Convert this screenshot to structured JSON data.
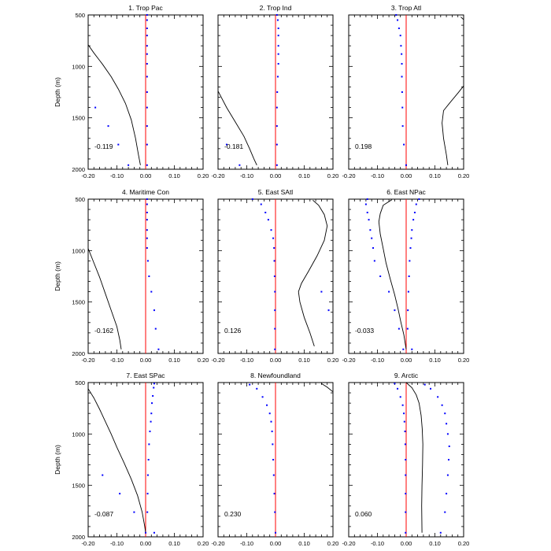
{
  "colors": {
    "axis": "#000000",
    "zero_line": "#ff0000",
    "dots": "#0000ff",
    "curve": "#000000"
  },
  "figure": {
    "ylabel": "Depth (m)",
    "xticks": [
      "-0.20",
      "-0.10",
      "0.00",
      "0.10",
      "0.20"
    ],
    "yticks": [
      "500",
      "1000",
      "1500",
      "2000"
    ]
  },
  "chart_data": [
    {
      "type": "line",
      "title": "1. Trop Pac",
      "annotation": "-0.119",
      "xlim": [
        -0.2,
        0.2
      ],
      "ylim": [
        2000,
        500
      ],
      "dots": [
        [
          0.005,
          500
        ],
        [
          0.005,
          550
        ],
        [
          0.005,
          630
        ],
        [
          0.005,
          700
        ],
        [
          0.005,
          800
        ],
        [
          0.005,
          880
        ],
        [
          0.005,
          975
        ],
        [
          0.005,
          1100
        ],
        [
          0.005,
          1250
        ],
        [
          0.005,
          1400
        ],
        [
          0.005,
          1580
        ],
        [
          0.005,
          1760
        ],
        [
          0.005,
          1960
        ]
      ],
      "points": [
        [
          -0.175,
          1400
        ],
        [
          -0.13,
          1580
        ],
        [
          -0.095,
          1760
        ],
        [
          -0.06,
          1960
        ]
      ],
      "curve": [
        [
          -0.2,
          790
        ],
        [
          -0.18,
          870
        ],
        [
          -0.15,
          980
        ],
        [
          -0.12,
          1100
        ],
        [
          -0.095,
          1220
        ],
        [
          -0.07,
          1360
        ],
        [
          -0.05,
          1520
        ],
        [
          -0.035,
          1700
        ],
        [
          -0.025,
          1860
        ],
        [
          -0.018,
          1960
        ]
      ]
    },
    {
      "type": "line",
      "title": "2. Trop Ind",
      "annotation": "-0.181",
      "xlim": [
        -0.2,
        0.2
      ],
      "ylim": [
        2000,
        500
      ],
      "dots": [
        [
          0.005,
          500
        ],
        [
          0.008,
          550
        ],
        [
          0.01,
          630
        ],
        [
          0.01,
          700
        ],
        [
          0.01,
          800
        ],
        [
          0.01,
          880
        ],
        [
          0.01,
          975
        ],
        [
          0.008,
          1100
        ],
        [
          0.006,
          1250
        ],
        [
          0.005,
          1400
        ],
        [
          0.005,
          1580
        ],
        [
          0.005,
          1760
        ],
        [
          0.005,
          1960
        ]
      ],
      "points": [
        [
          -0.17,
          1760
        ],
        [
          -0.125,
          1960
        ]
      ],
      "curve": [
        [
          -0.2,
          1240
        ],
        [
          -0.17,
          1400
        ],
        [
          -0.14,
          1540
        ],
        [
          -0.11,
          1680
        ],
        [
          -0.09,
          1800
        ],
        [
          -0.075,
          1900
        ],
        [
          -0.065,
          1960
        ]
      ]
    },
    {
      "type": "line",
      "title": "3. Trop Atl",
      "annotation": "0.198",
      "xlim": [
        -0.2,
        0.2
      ],
      "ylim": [
        2000,
        500
      ],
      "dots": [
        [
          -0.035,
          500
        ],
        [
          -0.03,
          550
        ],
        [
          -0.025,
          630
        ],
        [
          -0.02,
          700
        ],
        [
          -0.018,
          800
        ],
        [
          -0.016,
          880
        ],
        [
          -0.015,
          975
        ],
        [
          -0.015,
          1100
        ],
        [
          -0.014,
          1250
        ],
        [
          -0.013,
          1400
        ],
        [
          -0.012,
          1580
        ],
        [
          -0.008,
          1760
        ],
        [
          0.0,
          1960
        ]
      ],
      "points": [],
      "curve": [
        [
          0.19,
          520
        ],
        [
          0.2,
          545
        ]
      ],
      "curve2": [
        [
          0.2,
          1190
        ],
        [
          0.18,
          1260
        ],
        [
          0.15,
          1360
        ],
        [
          0.13,
          1430
        ],
        [
          0.125,
          1550
        ],
        [
          0.13,
          1700
        ],
        [
          0.14,
          1860
        ],
        [
          0.145,
          1960
        ]
      ]
    },
    {
      "type": "line",
      "title": "4. Maritime Con",
      "annotation": "-0.162",
      "xlim": [
        -0.2,
        0.2
      ],
      "ylim": [
        2000,
        500
      ],
      "dots": [
        [
          0.005,
          500
        ],
        [
          0.005,
          550
        ],
        [
          0.005,
          630
        ],
        [
          0.005,
          700
        ],
        [
          0.005,
          800
        ],
        [
          0.005,
          880
        ],
        [
          0.005,
          975
        ],
        [
          0.008,
          1100
        ],
        [
          0.012,
          1250
        ],
        [
          0.02,
          1400
        ],
        [
          0.03,
          1580
        ],
        [
          0.035,
          1760
        ],
        [
          0.045,
          1960
        ]
      ],
      "points": [],
      "curve": [
        [
          -0.2,
          980
        ],
        [
          -0.18,
          1120
        ],
        [
          -0.16,
          1260
        ],
        [
          -0.14,
          1420
        ],
        [
          -0.12,
          1580
        ],
        [
          -0.1,
          1740
        ],
        [
          -0.09,
          1870
        ],
        [
          -0.085,
          1960
        ]
      ]
    },
    {
      "type": "line",
      "title": "5. East SAtl",
      "annotation": "0.126",
      "xlim": [
        -0.2,
        0.2
      ],
      "ylim": [
        2000,
        500
      ],
      "dots": [
        [
          -0.08,
          500
        ],
        [
          -0.05,
          550
        ],
        [
          -0.035,
          630
        ],
        [
          -0.025,
          700
        ],
        [
          -0.015,
          800
        ],
        [
          -0.008,
          880
        ],
        [
          -0.005,
          975
        ],
        [
          -0.004,
          1100
        ],
        [
          -0.003,
          1250
        ],
        [
          -0.002,
          1400
        ],
        [
          -0.002,
          1580
        ],
        [
          -0.002,
          1760
        ],
        [
          -0.002,
          1960
        ]
      ],
      "points": [
        [
          0.16,
          1400
        ],
        [
          0.185,
          1580
        ]
      ],
      "curve": [
        [
          0.13,
          510
        ],
        [
          0.15,
          560
        ],
        [
          0.17,
          650
        ],
        [
          0.18,
          760
        ],
        [
          0.17,
          900
        ],
        [
          0.145,
          1050
        ],
        [
          0.115,
          1200
        ],
        [
          0.09,
          1320
        ],
        [
          0.08,
          1400
        ],
        [
          0.085,
          1500
        ],
        [
          0.1,
          1650
        ],
        [
          0.12,
          1800
        ],
        [
          0.135,
          1930
        ]
      ]
    },
    {
      "type": "line",
      "title": "6. East NPac",
      "annotation": "-0.033",
      "xlim": [
        -0.2,
        0.2
      ],
      "ylim": [
        2000,
        500
      ],
      "dots": [
        [
          -0.135,
          500
        ],
        [
          -0.14,
          550
        ],
        [
          -0.135,
          630
        ],
        [
          -0.13,
          700
        ],
        [
          -0.125,
          800
        ],
        [
          -0.12,
          880
        ],
        [
          -0.115,
          975
        ],
        [
          -0.11,
          1100
        ],
        [
          -0.09,
          1250
        ],
        [
          -0.06,
          1400
        ],
        [
          -0.04,
          1580
        ],
        [
          -0.025,
          1760
        ],
        [
          -0.01,
          1960
        ]
      ],
      "points": [
        [
          0.045,
          500
        ],
        [
          0.035,
          550
        ],
        [
          0.03,
          630
        ],
        [
          0.025,
          700
        ],
        [
          0.02,
          800
        ],
        [
          0.018,
          880
        ],
        [
          0.015,
          975
        ],
        [
          0.012,
          1100
        ],
        [
          0.01,
          1250
        ],
        [
          0.008,
          1400
        ],
        [
          0.006,
          1580
        ],
        [
          0.005,
          1760
        ],
        [
          0.02,
          1960
        ]
      ],
      "curve": [
        [
          -0.05,
          505
        ],
        [
          -0.08,
          560
        ],
        [
          -0.09,
          640
        ],
        [
          -0.095,
          720
        ],
        [
          -0.09,
          840
        ],
        [
          -0.08,
          980
        ],
        [
          -0.07,
          1120
        ],
        [
          -0.055,
          1280
        ],
        [
          -0.04,
          1430
        ],
        [
          -0.028,
          1570
        ],
        [
          -0.018,
          1700
        ],
        [
          -0.008,
          1820
        ],
        [
          0.0,
          1960
        ]
      ]
    },
    {
      "type": "line",
      "title": "7. East SPac",
      "annotation": "-0.087",
      "xlim": [
        -0.2,
        0.2
      ],
      "ylim": [
        2000,
        500
      ],
      "dots": [
        [
          0.03,
          510
        ],
        [
          0.028,
          550
        ],
        [
          0.025,
          630
        ],
        [
          0.022,
          700
        ],
        [
          0.02,
          800
        ],
        [
          0.018,
          880
        ],
        [
          0.015,
          975
        ],
        [
          0.012,
          1100
        ],
        [
          0.01,
          1250
        ],
        [
          0.008,
          1400
        ],
        [
          0.007,
          1580
        ],
        [
          0.006,
          1760
        ],
        [
          0.03,
          1960
        ]
      ],
      "points": [
        [
          -0.15,
          1400
        ],
        [
          -0.09,
          1580
        ],
        [
          -0.04,
          1760
        ],
        [
          0.0,
          1960
        ]
      ],
      "curve": [
        [
          -0.2,
          560
        ],
        [
          -0.18,
          650
        ],
        [
          -0.16,
          760
        ],
        [
          -0.14,
          880
        ],
        [
          -0.12,
          1000
        ],
        [
          -0.1,
          1130
        ],
        [
          -0.075,
          1280
        ],
        [
          -0.05,
          1440
        ],
        [
          -0.028,
          1600
        ],
        [
          -0.012,
          1760
        ],
        [
          -0.003,
          1900
        ],
        [
          0.0,
          1960
        ]
      ]
    },
    {
      "type": "line",
      "title": "8. Newfoundland",
      "annotation": "0.230",
      "xlim": [
        -0.2,
        0.2
      ],
      "ylim": [
        2000,
        500
      ],
      "dots": [
        [
          -0.09,
          520
        ],
        [
          -0.065,
          560
        ],
        [
          -0.045,
          640
        ],
        [
          -0.03,
          720
        ],
        [
          -0.02,
          800
        ],
        [
          -0.015,
          880
        ],
        [
          -0.012,
          975
        ],
        [
          -0.01,
          1100
        ],
        [
          -0.008,
          1250
        ],
        [
          -0.006,
          1400
        ],
        [
          -0.004,
          1580
        ],
        [
          -0.002,
          1760
        ],
        [
          0.0,
          1960
        ]
      ],
      "points": [],
      "curve": [
        [
          0.16,
          510
        ],
        [
          0.18,
          545
        ],
        [
          0.2,
          590
        ]
      ]
    },
    {
      "type": "line",
      "title": "9. Arctic",
      "annotation": "0.060",
      "xlim": [
        -0.2,
        0.2
      ],
      "ylim": [
        2000,
        500
      ],
      "dots": [
        [
          -0.04,
          510
        ],
        [
          -0.03,
          560
        ],
        [
          -0.02,
          640
        ],
        [
          -0.012,
          720
        ],
        [
          -0.008,
          800
        ],
        [
          -0.006,
          880
        ],
        [
          -0.004,
          975
        ],
        [
          -0.003,
          1100
        ],
        [
          -0.002,
          1250
        ],
        [
          -0.002,
          1400
        ],
        [
          -0.002,
          1580
        ],
        [
          -0.002,
          1760
        ],
        [
          -0.002,
          1960
        ]
      ],
      "points": [
        [
          0.065,
          520
        ],
        [
          0.085,
          560
        ],
        [
          0.11,
          640
        ],
        [
          0.125,
          720
        ],
        [
          0.135,
          800
        ],
        [
          0.14,
          900
        ],
        [
          0.145,
          1000
        ],
        [
          0.15,
          1120
        ],
        [
          0.148,
          1250
        ],
        [
          0.145,
          1400
        ],
        [
          0.14,
          1580
        ],
        [
          0.135,
          1760
        ],
        [
          0.12,
          1960
        ]
      ],
      "curve": [
        [
          0.0,
          500
        ],
        [
          0.02,
          550
        ],
        [
          0.035,
          620
        ],
        [
          0.045,
          700
        ],
        [
          0.052,
          820
        ],
        [
          0.056,
          950
        ],
        [
          0.058,
          1100
        ],
        [
          0.057,
          1300
        ],
        [
          0.055,
          1500
        ],
        [
          0.054,
          1700
        ],
        [
          0.055,
          1960
        ]
      ]
    }
  ]
}
